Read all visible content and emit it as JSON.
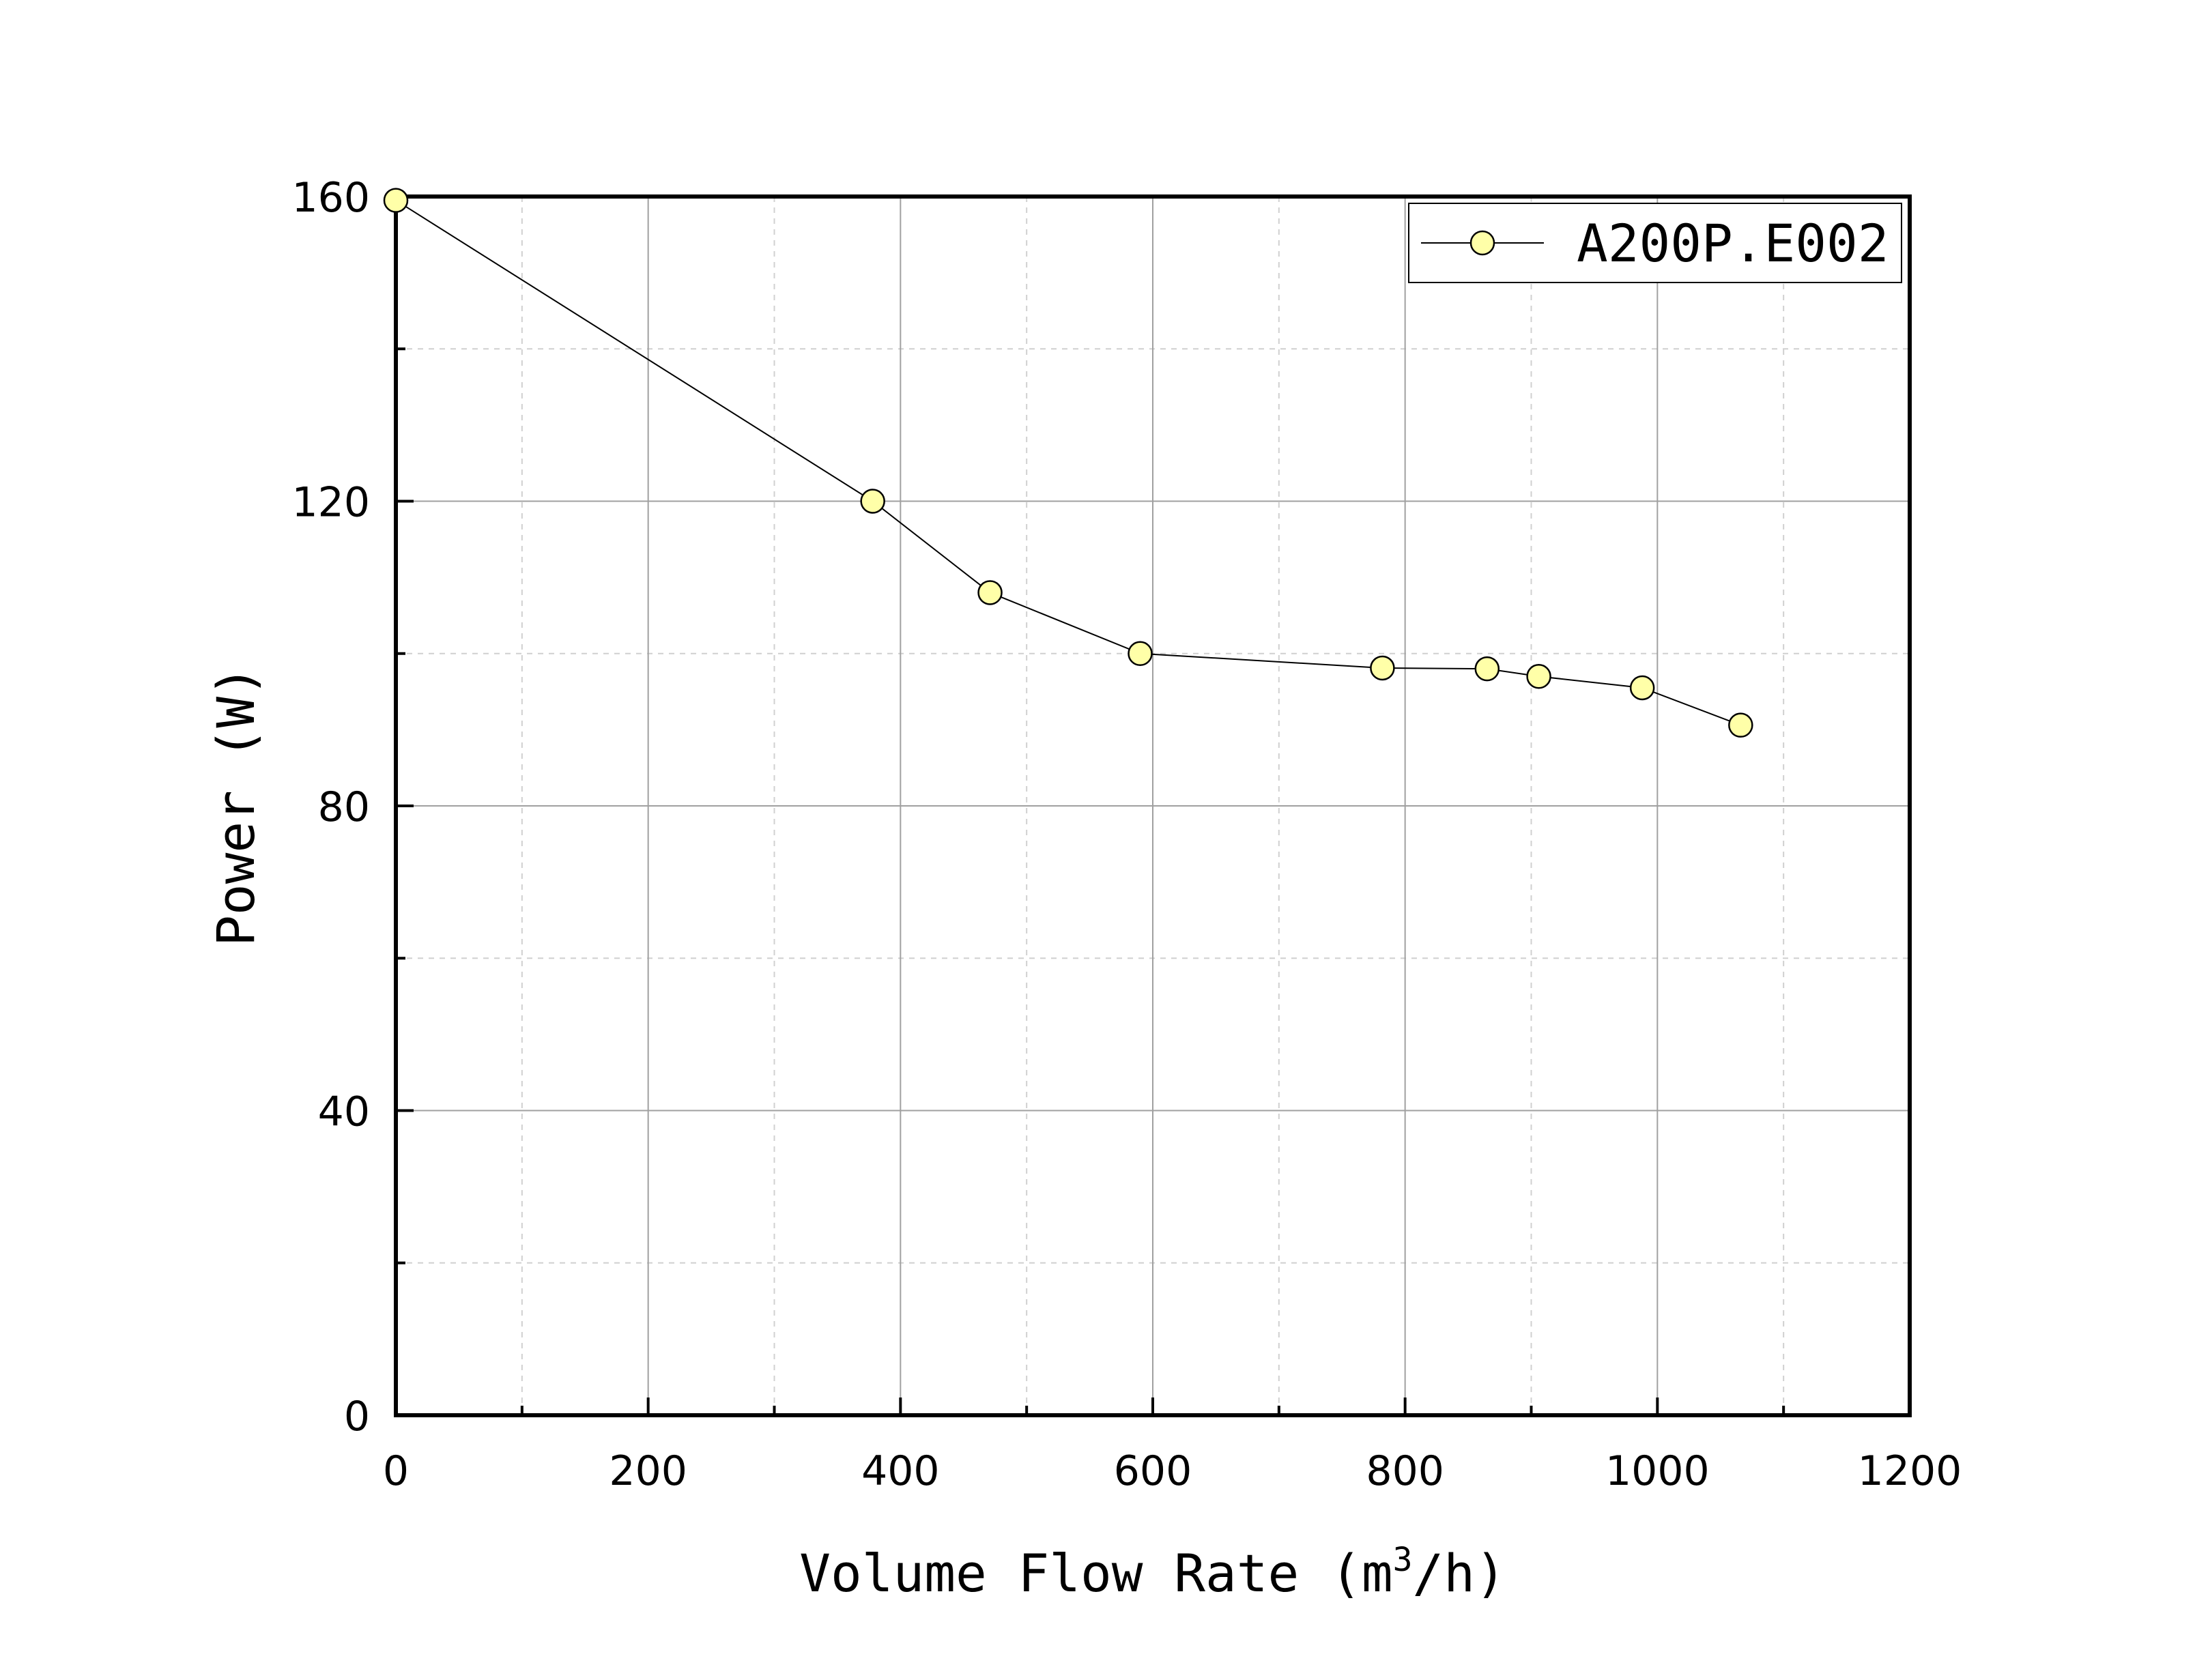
{
  "chart_data": {
    "type": "line",
    "title": "",
    "xlabel": "Volume Flow Rate (m",
    "xlabel_sup": "3",
    "xlabel_end": "/h)",
    "ylabel": "Power (W)",
    "xlim": [
      0,
      1200
    ],
    "ylim": [
      0,
      160
    ],
    "xticks": [
      0,
      200,
      400,
      600,
      800,
      1000,
      1200
    ],
    "yticks": [
      0,
      40,
      80,
      120,
      160
    ],
    "x_minor_step": 100,
    "y_minor_step": 20,
    "grid": true,
    "legend_position": "top-right",
    "series": [
      {
        "name": "A200P.E002",
        "marker": "circle",
        "marker_fill": "#ffffa8",
        "line_color": "#000000",
        "x": [
          0,
          378,
          471,
          590,
          782,
          865,
          906,
          988,
          1066
        ],
        "y": [
          159.5,
          120,
          108,
          100,
          98.1,
          98,
          97,
          95.5,
          90.6
        ]
      }
    ]
  }
}
